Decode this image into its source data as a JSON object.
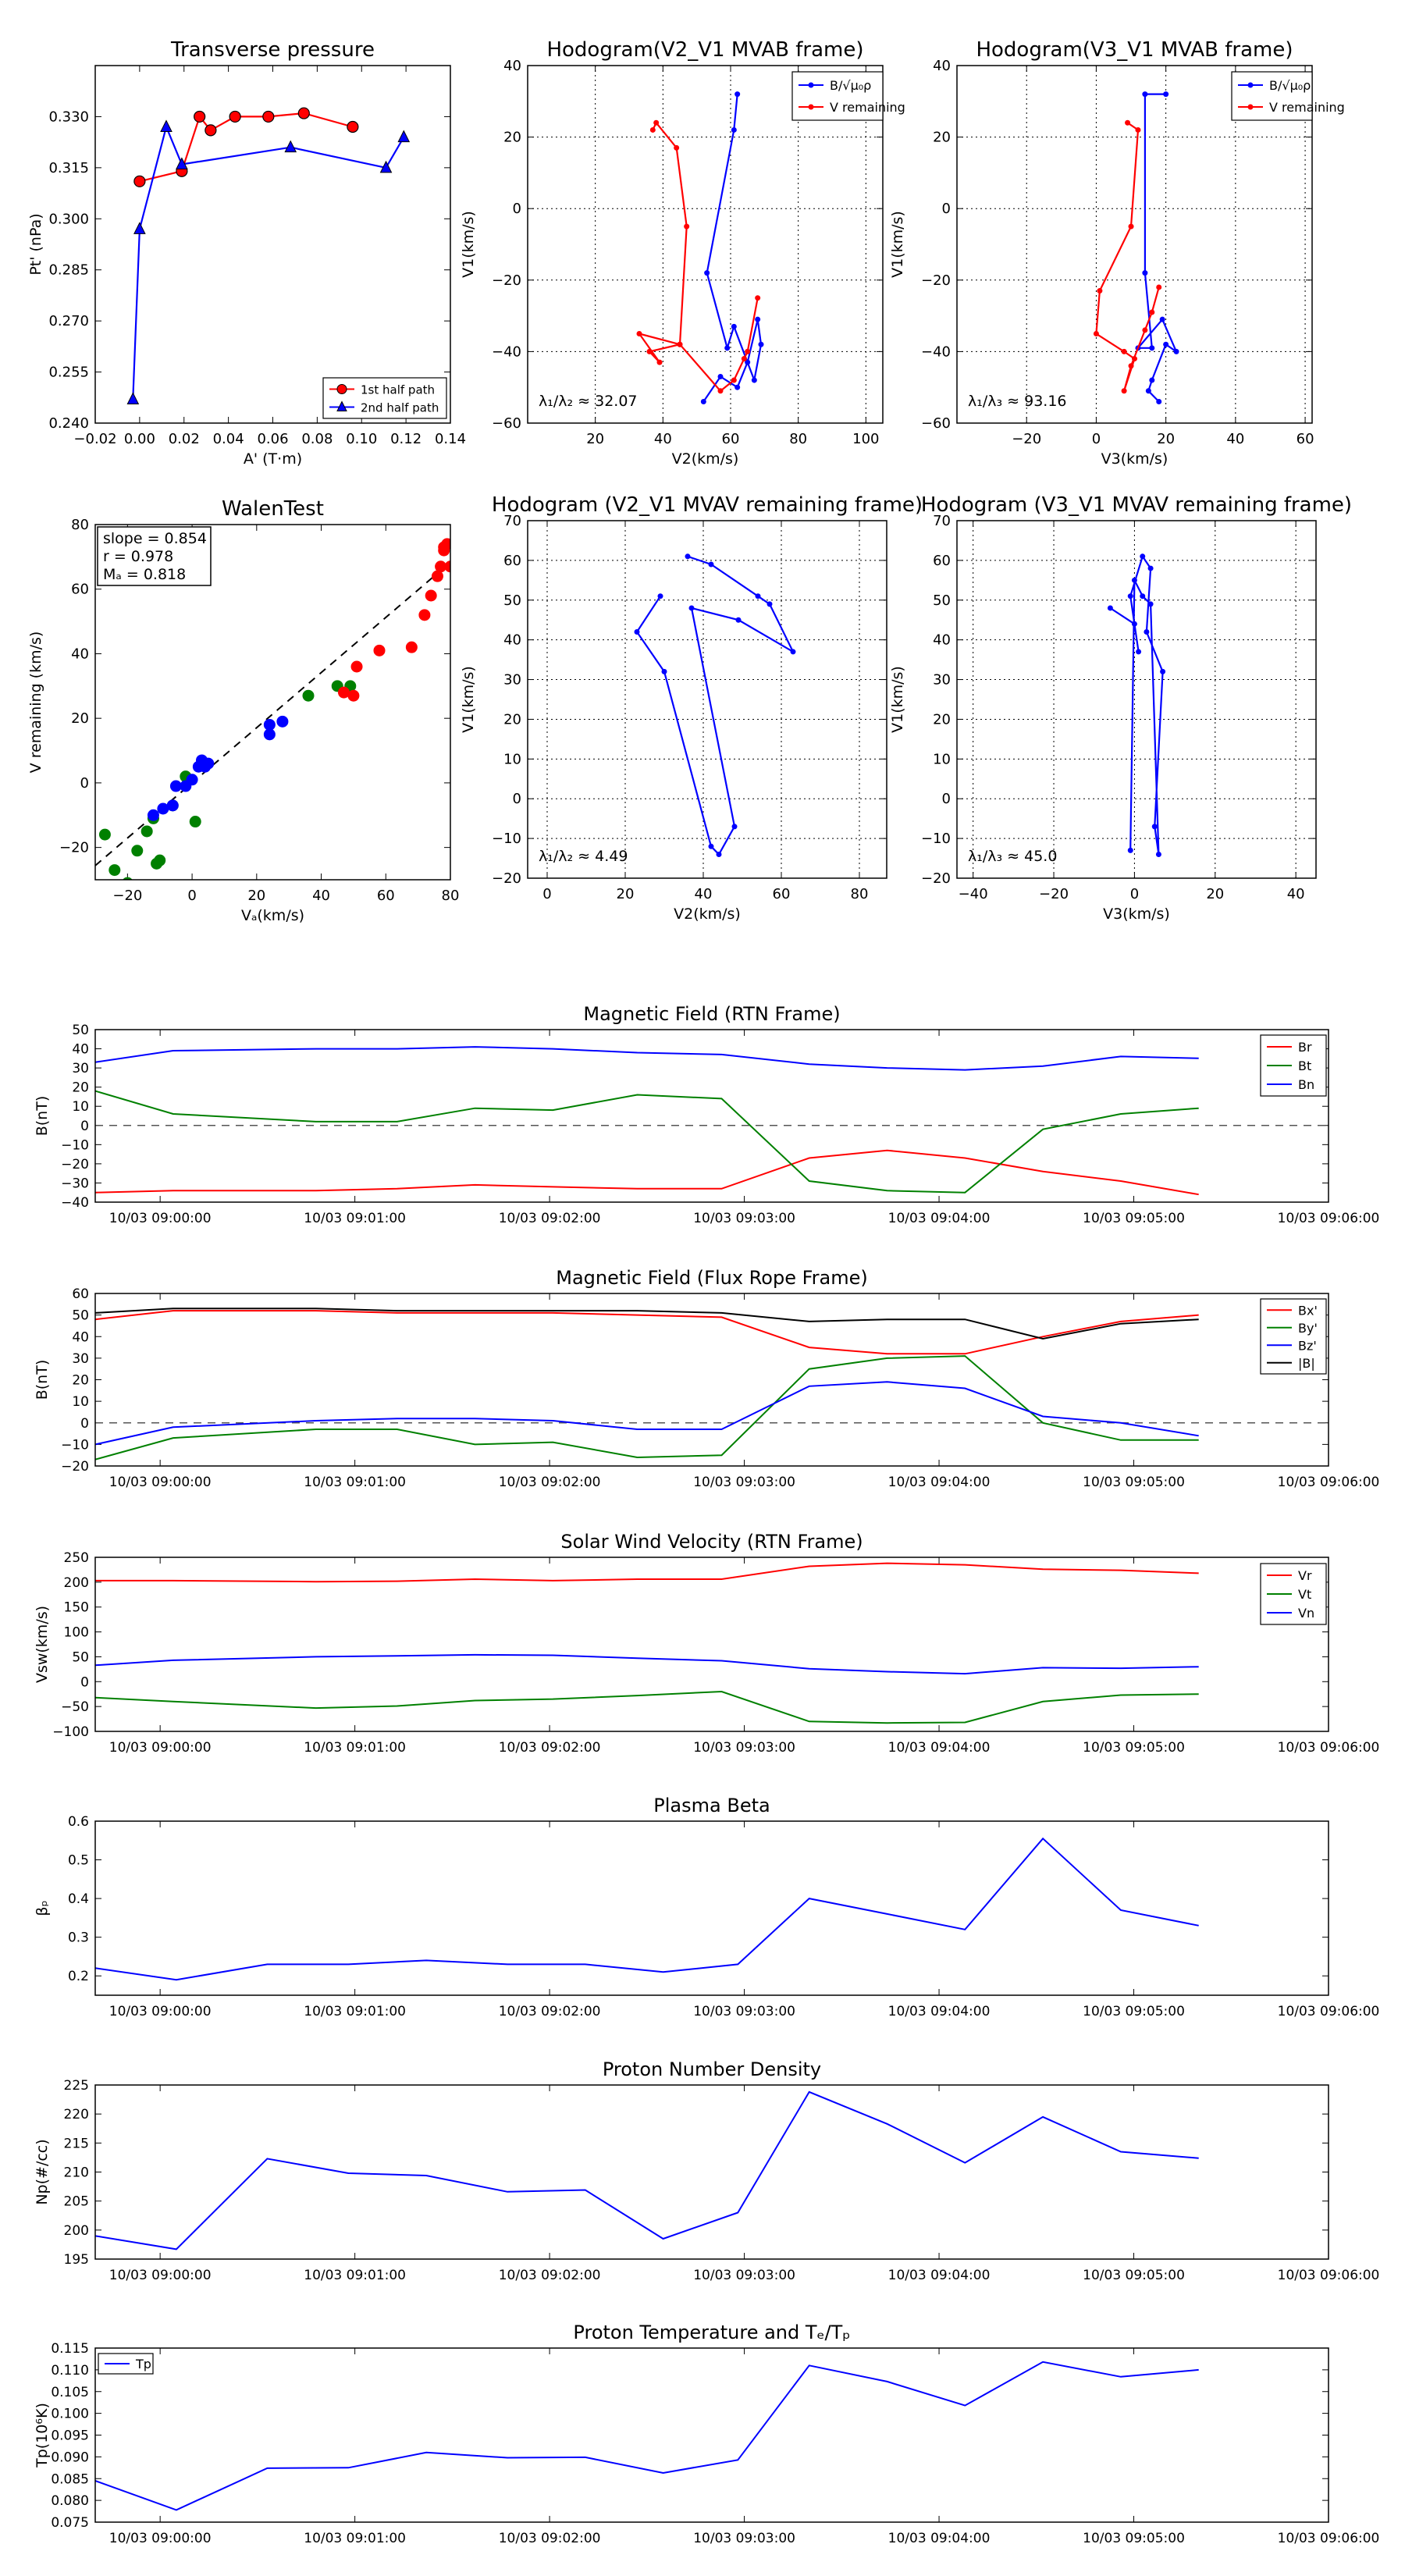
{
  "colors": {
    "red": "#ff0000",
    "green": "#008000",
    "blue": "#0000ff",
    "black": "#000000",
    "grid": "#000000",
    "dash": "#555555"
  },
  "chart_data": [
    {
      "id": "transverse",
      "type": "line",
      "title": "Transverse pressure",
      "xlabel": "A' (T·m)",
      "ylabel": "Pt' (nPa)",
      "xlim": [
        -0.02,
        0.14
      ],
      "ylim": [
        0.24,
        0.345
      ],
      "xticks": [
        -0.02,
        0.0,
        0.02,
        0.04,
        0.06,
        0.08,
        0.1,
        0.12,
        0.14
      ],
      "xtick_labels": [
        "−0.02",
        "0.00",
        "0.02",
        "0.04",
        "0.06",
        "0.08",
        "0.10",
        "0.12",
        "0.14"
      ],
      "yticks": [
        0.24,
        0.255,
        0.27,
        0.285,
        0.3,
        0.315,
        0.33
      ],
      "ytick_labels": [
        "0.240",
        "0.255",
        "0.270",
        "0.285",
        "0.300",
        "0.315",
        "0.330"
      ],
      "grid": false,
      "legend": "lower-right",
      "series": [
        {
          "name": "1st half path",
          "color": "#ff0000",
          "marker": "circle",
          "x": [
            0.0,
            0.019,
            0.027,
            0.032,
            0.043,
            0.058,
            0.074,
            0.096
          ],
          "y": [
            0.311,
            0.314,
            0.33,
            0.326,
            0.33,
            0.33,
            0.331,
            0.327
          ]
        },
        {
          "name": "2nd half path",
          "color": "#0000ff",
          "marker": "triangle",
          "x": [
            -0.003,
            0.0,
            0.012,
            0.019,
            0.068,
            0.111,
            0.119
          ],
          "y": [
            0.247,
            0.297,
            0.327,
            0.316,
            0.321,
            0.315,
            0.324
          ]
        }
      ]
    },
    {
      "id": "hodo-v2v1-mvab",
      "type": "line",
      "title": "Hodogram(V2_V1 MVAB frame)",
      "xlabel": "V2(km/s)",
      "ylabel": "V1(km/s)",
      "xlim": [
        0,
        105
      ],
      "ylim": [
        -60,
        40
      ],
      "xticks": [
        20,
        40,
        60,
        80,
        100
      ],
      "xtick_labels": [
        "20",
        "40",
        "60",
        "80",
        "100"
      ],
      "yticks": [
        -60,
        -40,
        -20,
        0,
        20,
        40
      ],
      "ytick_labels": [
        "−60",
        "−40",
        "−20",
        "0",
        "20",
        "40"
      ],
      "grid": true,
      "legend": "top-right",
      "annotation": "λ₁/λ₂ ≈ 32.07",
      "series": [
        {
          "name": "B/√μ₀ρ",
          "color": "#0000ff",
          "x": [
            62,
            61,
            53,
            59,
            61,
            67,
            69,
            68,
            65,
            62,
            57,
            52
          ],
          "y": [
            32,
            22,
            -18,
            -39,
            -33,
            -48,
            -38,
            -31,
            -43,
            -50,
            -47,
            -54
          ]
        },
        {
          "name": "V remaining",
          "color": "#ff0000",
          "x": [
            37,
            38,
            44,
            47,
            45,
            36,
            39,
            33,
            45,
            57,
            61,
            64,
            65,
            68
          ],
          "y": [
            22,
            24,
            17,
            -5,
            -38,
            -40,
            -43,
            -35,
            -38,
            -51,
            -48,
            -42,
            -40,
            -25
          ]
        }
      ]
    },
    {
      "id": "hodo-v3v1-mvab",
      "type": "line",
      "title": "Hodogram(V3_V1 MVAB frame)",
      "xlabel": "V3(km/s)",
      "ylabel": "V1(km/s)",
      "xlim": [
        -40,
        62
      ],
      "ylim": [
        -60,
        40
      ],
      "xticks": [
        -20,
        0,
        20,
        40,
        60
      ],
      "xtick_labels": [
        "−20",
        "0",
        "20",
        "40",
        "60"
      ],
      "yticks": [
        -60,
        -40,
        -20,
        0,
        20,
        40
      ],
      "ytick_labels": [
        "−60",
        "−40",
        "−20",
        "0",
        "20",
        "40"
      ],
      "grid": true,
      "legend": "top-right",
      "annotation": "λ₁/λ₃ ≈ 93.16",
      "series": [
        {
          "name": "B/√μ₀ρ",
          "color": "#0000ff",
          "x": [
            20,
            14,
            14,
            16,
            12,
            19,
            23,
            20,
            16,
            15,
            18
          ],
          "y": [
            32,
            32,
            -18,
            -39,
            -39,
            -31,
            -40,
            -38,
            -48,
            -51,
            -54
          ]
        },
        {
          "name": "V remaining",
          "color": "#ff0000",
          "x": [
            9,
            12,
            10,
            1,
            0,
            8,
            11,
            8,
            10,
            14,
            16,
            18
          ],
          "y": [
            24,
            22,
            -5,
            -23,
            -35,
            -40,
            -42,
            -51,
            -44,
            -34,
            -29,
            -22
          ]
        }
      ]
    },
    {
      "id": "walen",
      "type": "scatter",
      "title": "WalenTest",
      "xlabel": "Vₐ(km/s)",
      "ylabel": "V remaining (km/s)",
      "xlim": [
        -30,
        80
      ],
      "ylim": [
        -30,
        80
      ],
      "xticks": [
        -20,
        0,
        20,
        40,
        60,
        80
      ],
      "xtick_labels": [
        "−20",
        "0",
        "20",
        "40",
        "60",
        "80"
      ],
      "yticks": [
        -20,
        0,
        20,
        40,
        60,
        80
      ],
      "ytick_labels": [
        "−20",
        "0",
        "20",
        "40",
        "60",
        "80"
      ],
      "grid": false,
      "stats": [
        "slope = 0.854",
        "r = 0.978",
        "Mₐ = 0.818"
      ],
      "fit_line": {
        "slope": 0.854,
        "intercept": 0
      },
      "series": [
        {
          "name": "green",
          "color": "#008000",
          "x": [
            -27,
            -24,
            -20,
            -17,
            -14,
            -12,
            -11,
            -10,
            -6,
            -2,
            1,
            36,
            45,
            49
          ],
          "y": [
            -16,
            -27,
            -31,
            -21,
            -15,
            -11,
            -25,
            -24,
            -7,
            2,
            -12,
            27,
            30,
            30
          ]
        },
        {
          "name": "blue",
          "color": "#0000ff",
          "x": [
            -12,
            -9,
            -6,
            -5,
            -2,
            0,
            2,
            3,
            4,
            5,
            24,
            24,
            28
          ],
          "y": [
            -10,
            -8,
            -7,
            -1,
            -1,
            1,
            5,
            7,
            5,
            6,
            18,
            15,
            19
          ]
        },
        {
          "name": "red",
          "color": "#ff0000",
          "x": [
            47,
            50,
            51,
            58,
            68,
            72,
            74,
            76,
            77,
            78,
            78,
            79,
            80
          ],
          "y": [
            28,
            27,
            36,
            41,
            42,
            52,
            58,
            64,
            67,
            72,
            73,
            74,
            67
          ]
        }
      ]
    },
    {
      "id": "hodo-v2v1-mvav",
      "type": "line",
      "title": "Hodogram (V2_V1 MVAV remaining frame)",
      "xlabel": "V2(km/s)",
      "ylabel": "V1(km/s)",
      "xlim": [
        -5,
        87
      ],
      "ylim": [
        -20,
        70
      ],
      "xticks": [
        0,
        20,
        40,
        60,
        80
      ],
      "xtick_labels": [
        "0",
        "20",
        "40",
        "60",
        "80"
      ],
      "yticks": [
        -20,
        -10,
        0,
        10,
        20,
        30,
        40,
        50,
        60,
        70
      ],
      "ytick_labels": [
        "−20",
        "−10",
        "0",
        "10",
        "20",
        "30",
        "40",
        "50",
        "60",
        "70"
      ],
      "grid": true,
      "annotation": "λ₁/λ₂ ≈ 4.49",
      "series": [
        {
          "name": "V",
          "color": "#0000ff",
          "x": [
            29,
            23,
            30,
            42,
            44,
            48,
            37,
            49,
            63,
            57,
            54,
            42,
            36
          ],
          "y": [
            51,
            42,
            32,
            -12,
            -14,
            -7,
            48,
            45,
            37,
            49,
            51,
            59,
            61
          ]
        }
      ]
    },
    {
      "id": "hodo-v3v1-mvav",
      "type": "line",
      "title": "Hodogram (V3_V1 MVAV remaining frame)",
      "xlabel": "V3(km/s)",
      "ylabel": "V1(km/s)",
      "xlim": [
        -44,
        45
      ],
      "ylim": [
        -20,
        70
      ],
      "xticks": [
        -40,
        -20,
        0,
        20,
        40
      ],
      "xtick_labels": [
        "−40",
        "−20",
        "0",
        "20",
        "40"
      ],
      "yticks": [
        -20,
        -10,
        0,
        10,
        20,
        30,
        40,
        50,
        60,
        70
      ],
      "ytick_labels": [
        "−20",
        "−10",
        "0",
        "10",
        "20",
        "30",
        "40",
        "50",
        "60",
        "70"
      ],
      "grid": true,
      "annotation": "λ₁/λ₃ ≈ 45.0",
      "series": [
        {
          "name": "V",
          "color": "#0000ff",
          "x": [
            -6,
            0,
            1,
            -1,
            2,
            4,
            3,
            7,
            5,
            6,
            4,
            2,
            0,
            -1
          ],
          "y": [
            48,
            44,
            37,
            51,
            61,
            58,
            42,
            32,
            -7,
            -14,
            49,
            51,
            55,
            -13
          ]
        }
      ]
    },
    {
      "id": "mag-rtn",
      "type": "line",
      "title": "Magnetic Field (RTN Frame)",
      "ylabel": "B(nT)",
      "ylim": [
        -40,
        50
      ],
      "yticks": [
        -40,
        -30,
        -20,
        -10,
        0,
        10,
        20,
        30,
        40,
        50
      ],
      "ytick_labels": [
        "−40",
        "−30",
        "−20",
        "−10",
        "0",
        "10",
        "20",
        "30",
        "40",
        "50"
      ],
      "zero_dash": true,
      "legend": "top-right",
      "series": [
        {
          "name": "Br",
          "color": "#ff0000",
          "values": [
            -35,
            -34,
            -34,
            -33,
            -31,
            -32,
            -33,
            -33,
            -17,
            -13,
            -17,
            -24,
            -29,
            -36
          ]
        },
        {
          "name": "Bt",
          "color": "#008000",
          "values": [
            18,
            6,
            2,
            2,
            9,
            8,
            16,
            14,
            -29,
            -34,
            -35,
            -2,
            6,
            9
          ]
        },
        {
          "name": "Bn",
          "color": "#0000ff",
          "values": [
            33,
            39,
            40,
            40,
            41,
            40,
            38,
            37,
            32,
            30,
            29,
            31,
            36,
            35
          ]
        }
      ]
    },
    {
      "id": "mag-flux",
      "type": "line",
      "title": "Magnetic Field (Flux Rope Frame)",
      "ylabel": "B(nT)",
      "ylim": [
        -20,
        60
      ],
      "yticks": [
        -20,
        -10,
        0,
        10,
        20,
        30,
        40,
        50,
        60
      ],
      "ytick_labels": [
        "−20",
        "−10",
        "0",
        "10",
        "20",
        "30",
        "40",
        "50",
        "60"
      ],
      "zero_dash": true,
      "legend": "top-right",
      "series": [
        {
          "name": "Bx'",
          "color": "#ff0000",
          "values": [
            48,
            52,
            52,
            51,
            51,
            51,
            50,
            49,
            35,
            32,
            32,
            40,
            47,
            50
          ]
        },
        {
          "name": "By'",
          "color": "#008000",
          "values": [
            -17,
            -7,
            -3,
            -3,
            -10,
            -9,
            -16,
            -15,
            25,
            30,
            31,
            0,
            -8,
            -8
          ]
        },
        {
          "name": "Bz'",
          "color": "#0000ff",
          "values": [
            -10,
            -2,
            1,
            2,
            2,
            1,
            -3,
            -3,
            17,
            19,
            16,
            3,
            0,
            -6
          ]
        },
        {
          "name": "|B|",
          "color": "#000000",
          "values": [
            51,
            53,
            53,
            52,
            52,
            52,
            52,
            51,
            47,
            48,
            48,
            39,
            46,
            48
          ]
        }
      ]
    },
    {
      "id": "velocity",
      "type": "line",
      "title": "Solar Wind Velocity (RTN Frame)",
      "ylabel": "Vsw(km/s)",
      "ylim": [
        -100,
        250
      ],
      "yticks": [
        -100,
        -50,
        0,
        50,
        100,
        150,
        200,
        250
      ],
      "ytick_labels": [
        "−100",
        "−50",
        "0",
        "50",
        "100",
        "150",
        "200",
        "250"
      ],
      "legend": "top-right",
      "series": [
        {
          "name": "Vr",
          "color": "#ff0000",
          "values": [
            203,
            203,
            201,
            202,
            206,
            203,
            206,
            206,
            232,
            238,
            235,
            226,
            224,
            218
          ]
        },
        {
          "name": "Vt",
          "color": "#008000",
          "values": [
            -32,
            -40,
            -53,
            -49,
            -38,
            -35,
            -28,
            -20,
            -80,
            -83,
            -82,
            -40,
            -27,
            -25
          ]
        },
        {
          "name": "Vn",
          "color": "#0000ff",
          "values": [
            33,
            43,
            50,
            52,
            54,
            53,
            47,
            42,
            26,
            20,
            16,
            28,
            27,
            30
          ]
        }
      ]
    },
    {
      "id": "beta",
      "type": "line",
      "title": "Plasma Beta",
      "ylabel": "βₚ",
      "ylim": [
        0.15,
        0.6
      ],
      "yticks": [
        0.2,
        0.3,
        0.4,
        0.5,
        0.6
      ],
      "ytick_labels": [
        "0.2",
        "0.3",
        "0.4",
        "0.5",
        "0.6"
      ],
      "series": [
        {
          "name": "beta",
          "color": "#0000ff",
          "values": [
            0.22,
            0.19,
            0.23,
            0.23,
            0.24,
            0.23,
            0.23,
            0.21,
            0.23,
            0.4,
            0.36,
            0.32,
            0.555,
            0.37,
            0.33
          ]
        }
      ]
    },
    {
      "id": "density",
      "type": "line",
      "title": "Proton Number Density",
      "ylabel": "Np(#/cc)",
      "ylim": [
        195,
        225
      ],
      "yticks": [
        195,
        200,
        205,
        210,
        215,
        220,
        225
      ],
      "ytick_labels": [
        "195",
        "200",
        "205",
        "210",
        "215",
        "220",
        "225"
      ],
      "series": [
        {
          "name": "Np",
          "color": "#0000ff",
          "values": [
            199,
            196.7,
            212.3,
            209.8,
            209.4,
            206.6,
            206.9,
            198.5,
            203,
            223.8,
            218.3,
            211.6,
            219.5,
            213.5,
            212.4
          ]
        }
      ]
    },
    {
      "id": "temperature",
      "type": "line",
      "title": "Proton Temperature and Tₑ/Tₚ",
      "ylabel": "Tp(10⁶K)",
      "ylim": [
        0.075,
        0.115
      ],
      "yticks": [
        0.075,
        0.08,
        0.085,
        0.09,
        0.095,
        0.1,
        0.105,
        0.11,
        0.115
      ],
      "ytick_labels": [
        "0.075",
        "0.080",
        "0.085",
        "0.090",
        "0.095",
        "0.100",
        "0.105",
        "0.110",
        "0.115"
      ],
      "legend": "top-left",
      "series": [
        {
          "name": "Tp",
          "color": "#0000ff",
          "values": [
            0.0845,
            0.0778,
            0.0874,
            0.0875,
            0.091,
            0.0898,
            0.0899,
            0.0863,
            0.0893,
            0.111,
            0.1073,
            0.1018,
            0.1118,
            0.1084,
            0.11
          ]
        }
      ]
    }
  ],
  "time_axis": {
    "tick_labels": [
      "10/03 09:00:00",
      "10/03 09:01:00",
      "10/03 09:02:00",
      "10/03 09:03:00",
      "10/03 09:04:00",
      "10/03 09:05:00",
      "10/03 09:06:00"
    ],
    "start_seconds": -20,
    "end_seconds": 360,
    "tick_seconds": [
      0,
      60,
      120,
      180,
      240,
      300,
      360
    ],
    "sample_seconds_14": [
      -20,
      4,
      48,
      73,
      97,
      121,
      147,
      173,
      200,
      224,
      248,
      272,
      296,
      320
    ],
    "sample_seconds_15": [
      -20,
      5,
      33,
      58,
      82,
      107,
      131,
      155,
      178,
      200,
      224,
      248,
      272,
      296,
      320
    ]
  }
}
